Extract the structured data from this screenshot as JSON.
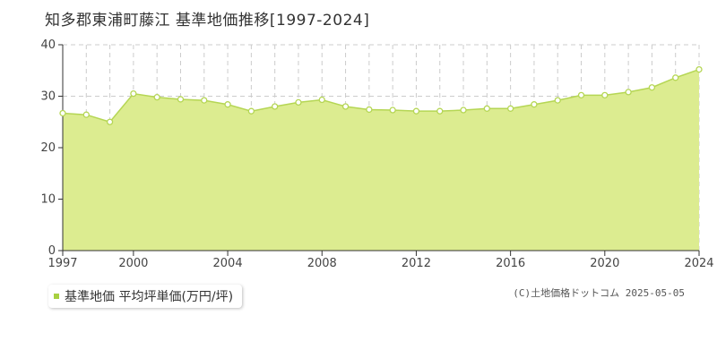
{
  "title": "知多郡東浦町藤江 基準地価推移[1997-2024]",
  "colors": {
    "area_fill": "#dcec90",
    "line": "#b5d654",
    "point_fill": "#ffffff",
    "grid": "#cccccc",
    "legend_swatch": "#a8d040"
  },
  "chart_data": {
    "type": "area",
    "x": [
      1997,
      1998,
      1999,
      2000,
      2001,
      2002,
      2003,
      2004,
      2005,
      2006,
      2007,
      2008,
      2009,
      2010,
      2011,
      2012,
      2013,
      2014,
      2015,
      2016,
      2017,
      2018,
      2019,
      2020,
      2021,
      2022,
      2023,
      2024
    ],
    "series": [
      {
        "name": "基準地価 平均坪単価(万円/坪)",
        "values": [
          26.7,
          26.4,
          25.0,
          30.5,
          29.8,
          29.4,
          29.2,
          28.4,
          27.1,
          28.0,
          28.8,
          29.3,
          28.0,
          27.4,
          27.3,
          27.1,
          27.1,
          27.3,
          27.6,
          27.6,
          28.4,
          29.2,
          30.2,
          30.2,
          30.8,
          31.7,
          33.6,
          35.2
        ]
      }
    ],
    "xlim": [
      1997,
      2024
    ],
    "ylim": [
      0,
      40
    ],
    "x_ticks": [
      1997,
      2000,
      2004,
      2008,
      2012,
      2016,
      2020,
      2024
    ],
    "y_ticks": [
      0,
      10,
      20,
      30,
      40
    ],
    "grid": true,
    "legend_position": "bottom-left"
  },
  "legend": {
    "label": "基準地価 平均坪単価(万円/坪)"
  },
  "copyright": "(C)土地価格ドットコム 2025-05-05"
}
